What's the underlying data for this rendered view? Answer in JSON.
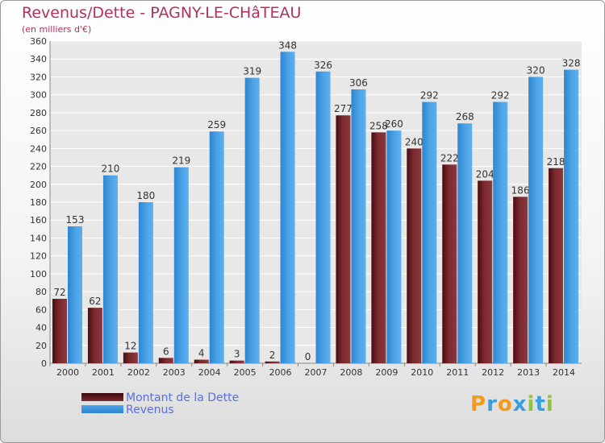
{
  "chart_data": {
    "type": "bar",
    "title": "Revenus/Dette - PAGNY-LE-CHâTEAU",
    "subtitle": "(en milliers d'€)",
    "categories": [
      "2000",
      "2001",
      "2002",
      "2003",
      "2004",
      "2005",
      "2006",
      "2007",
      "2008",
      "2009",
      "2010",
      "2011",
      "2012",
      "2013",
      "2014"
    ],
    "series": [
      {
        "name": "Montant de la Dette",
        "color": "#7a2a2e",
        "values": [
          72,
          62,
          12,
          6,
          4,
          3,
          2,
          0,
          277,
          258,
          240,
          222,
          204,
          186,
          218
        ]
      },
      {
        "name": "Revenus",
        "color": "#4da3e6",
        "values": [
          153,
          210,
          180,
          219,
          259,
          319,
          348,
          326,
          306,
          260,
          292,
          268,
          292,
          320,
          328
        ]
      }
    ],
    "ylim": [
      0,
      360
    ],
    "yticks": [
      0,
      20,
      40,
      60,
      80,
      100,
      120,
      140,
      160,
      180,
      200,
      220,
      240,
      260,
      280,
      300,
      320,
      340,
      360
    ],
    "grid": true,
    "legend": "bottom-left"
  },
  "logo": {
    "letters": [
      "P",
      "r",
      "o",
      "x",
      "i",
      "t",
      "i"
    ],
    "colors": [
      "#f39a1e",
      "#3aa0dd",
      "#f39a1e",
      "#3aa0dd",
      "#8cc63f",
      "#3aa0dd",
      "#8cc63f"
    ]
  }
}
